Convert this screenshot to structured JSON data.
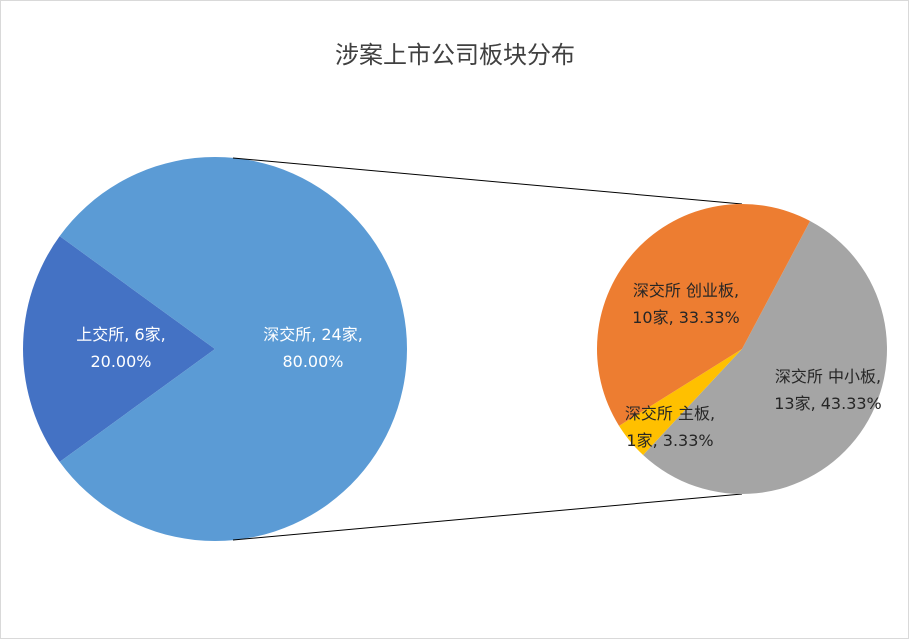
{
  "chart_data": {
    "type": "pie",
    "subtype": "pie-of-pie",
    "title": "涉案上市公司板块分布",
    "main_pie": {
      "slices": [
        {
          "name": "上交所",
          "count": 6,
          "unit": "家",
          "percent": 20.0,
          "label_line1": "上交所, 6家,",
          "label_line2": "20.00%",
          "color": "#4472c4"
        },
        {
          "name": "深交所",
          "count": 24,
          "unit": "家",
          "percent": 80.0,
          "label_line1": "深交所, 24家,",
          "label_line2": "80.00%",
          "color": "#5b9bd5"
        }
      ]
    },
    "secondary_pie": {
      "parent": "深交所",
      "slices": [
        {
          "name": "深交所 创业板",
          "count": 10,
          "unit": "家",
          "percent": 33.33,
          "label_line1": "深交所 创业板,",
          "label_line2": "10家, 33.33%",
          "color": "#ed7d31"
        },
        {
          "name": "深交所 中小板",
          "count": 13,
          "unit": "家",
          "percent": 43.33,
          "label_line1": "深交所 中小板,",
          "label_line2": "13家, 43.33%",
          "color": "#a5a5a5"
        },
        {
          "name": "深交所 主板",
          "count": 1,
          "unit": "家",
          "percent": 3.33,
          "label_line1": "深交所 主板,",
          "label_line2": "1家, 3.33%",
          "color": "#ffc000"
        }
      ]
    },
    "connector_color": "#000000",
    "legend": "none"
  }
}
